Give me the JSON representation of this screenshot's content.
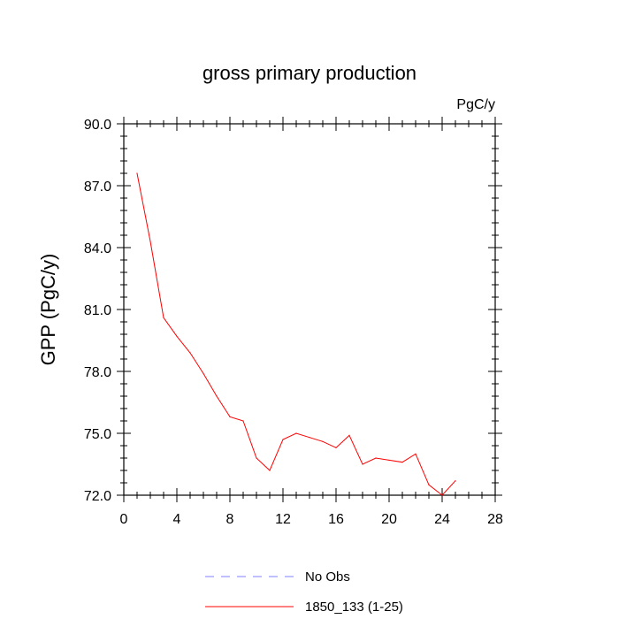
{
  "chart_data": {
    "type": "line",
    "title": "gross primary production",
    "units_label": "PgC/y",
    "xlabel": "",
    "ylabel": "GPP  (PgC/y)",
    "xlim": [
      0,
      28
    ],
    "ylim": [
      72.0,
      90.0
    ],
    "x_ticks": [
      0,
      4,
      8,
      12,
      16,
      20,
      24,
      28
    ],
    "x_tick_labels": [
      "0",
      "4",
      "8",
      "12",
      "16",
      "20",
      "24",
      "28"
    ],
    "y_ticks": [
      72.0,
      75.0,
      78.0,
      81.0,
      84.0,
      87.0,
      90.0
    ],
    "y_tick_labels": [
      "72.0",
      "75.0",
      "78.0",
      "81.0",
      "84.0",
      "87.0",
      "90.0"
    ],
    "grid": false,
    "legend_position": "bottom-center",
    "legend": [
      {
        "label": "No Obs",
        "color": "#8080ff",
        "dash": "dashed"
      },
      {
        "label": "1850_133 (1-25)",
        "color": "#ff0000",
        "dash": "solid"
      }
    ],
    "series": [
      {
        "name": "No Obs",
        "color": "#8080ff",
        "x": [],
        "values": []
      },
      {
        "name": "1850_133 (1-25)",
        "color": "#ff0000",
        "x": [
          1,
          2,
          3,
          4,
          5,
          6,
          7,
          8,
          9,
          10,
          11,
          12,
          13,
          14,
          15,
          16,
          17,
          18,
          19,
          20,
          21,
          22,
          23,
          24,
          25
        ],
        "values": [
          87.6,
          84.3,
          80.6,
          79.7,
          78.9,
          77.9,
          76.8,
          75.8,
          75.6,
          73.8,
          73.2,
          74.7,
          75.0,
          74.8,
          74.6,
          74.3,
          74.9,
          73.5,
          73.8,
          73.7,
          73.6,
          74.0,
          72.5,
          72.0,
          72.7
        ]
      }
    ]
  }
}
